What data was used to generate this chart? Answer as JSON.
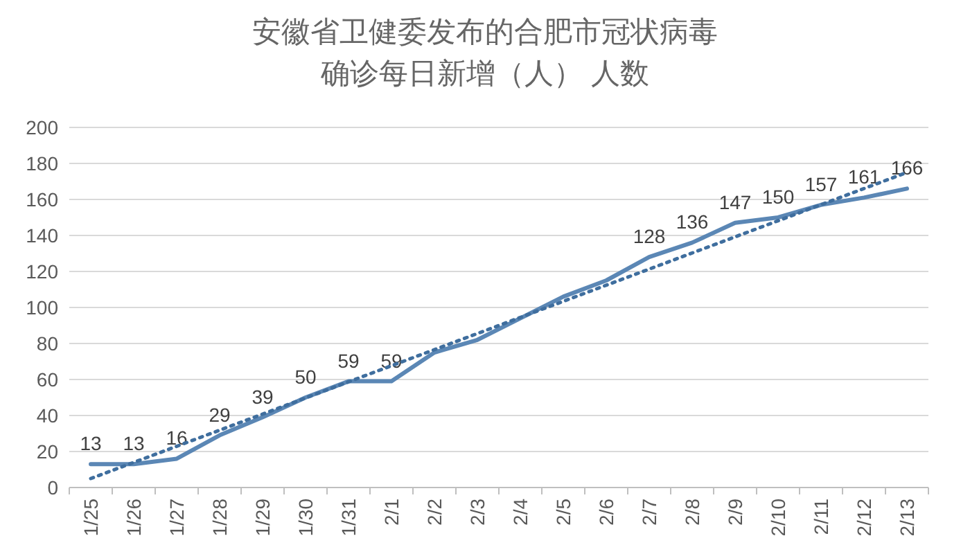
{
  "chart_data": {
    "type": "line",
    "title": "安徽省卫健委发布的合肥市冠状病毒",
    "subtitle": "确诊每日新增（人） 人数",
    "categories": [
      "1/25",
      "1/26",
      "1/27",
      "1/28",
      "1/29",
      "1/30",
      "1/31",
      "2/1",
      "2/2",
      "2/3",
      "2/4",
      "2/5",
      "2/6",
      "2/7",
      "2/8",
      "2/9",
      "2/10",
      "2/11",
      "2/12",
      "2/13"
    ],
    "series": [
      {
        "color": "#5b87b5",
        "line_style": "solid",
        "values": [
          13,
          13,
          16,
          29,
          39,
          50,
          59,
          59,
          75,
          82,
          94,
          106,
          115,
          128,
          136,
          147,
          150,
          157,
          161,
          166
        ],
        "value_labels": [
          "13",
          "13",
          "16",
          "29",
          "39",
          "50",
          "59",
          "59",
          null,
          null,
          null,
          null,
          null,
          "128",
          "136",
          "147",
          "150",
          "157",
          "161",
          "166"
        ]
      },
      {
        "color": "#3f6e9e",
        "line_style": "dotted",
        "values": [
          5,
          null,
          null,
          null,
          null,
          null,
          null,
          null,
          null,
          null,
          null,
          null,
          null,
          null,
          null,
          null,
          null,
          null,
          null,
          175
        ]
      }
    ],
    "ylim": [
      0,
      200
    ],
    "yticks": [
      0,
      20,
      40,
      60,
      80,
      100,
      120,
      140,
      160,
      180,
      200
    ],
    "grid": "y",
    "marker": "none"
  }
}
